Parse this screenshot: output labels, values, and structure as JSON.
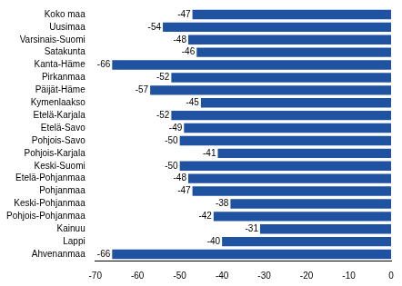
{
  "chart_data": {
    "type": "bar",
    "orientation": "horizontal",
    "categories": [
      "Koko maa",
      "Uusimaa",
      "Varsinais-Suomi",
      "Satakunta",
      "Kanta-Häme",
      "Pirkanmaa",
      "Päijät-Häme",
      "Kymenlaakso",
      "Etelä-Karjala",
      "Etelä-Savo",
      "Pohjois-Savo",
      "Pohjois-Karjala",
      "Keski-Suomi",
      "Etelä-Pohjanmaa",
      "Pohjanmaa",
      "Keski-Pohjanmaa",
      "Pohjois-Pohjanmaa",
      "Kainuu",
      "Lappi",
      "Ahvenanmaa"
    ],
    "values": [
      -47,
      -54,
      -48,
      -46,
      -66,
      -52,
      -57,
      -45,
      -52,
      -49,
      -50,
      -41,
      -50,
      -48,
      -47,
      -38,
      -42,
      -31,
      -40,
      -66
    ],
    "color": "#1f52a0",
    "xlim": [
      -70,
      0
    ],
    "xticks": [
      -70,
      -60,
      -50,
      -40,
      -30,
      -20,
      -10,
      0
    ],
    "grid": false,
    "data_labels": true
  }
}
